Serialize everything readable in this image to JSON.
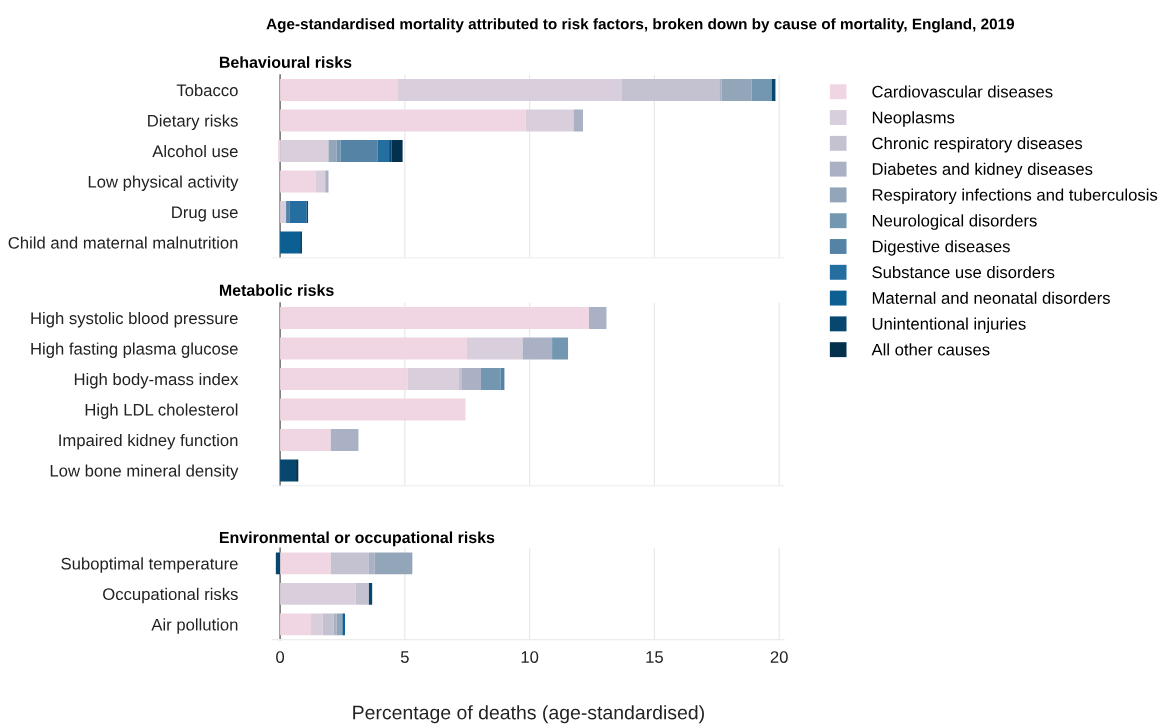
{
  "chart_data": [
    {
      "type": "bar",
      "orientation": "horizontal",
      "stacked": true,
      "title": "Age-standardised mortality attributed to risk factors, broken down by cause of mortality, England, 2019",
      "subtitle": "Behavioural risks",
      "categories": [
        "Tobacco",
        "Dietary risks",
        "Alcohol use",
        "Low physical activity",
        "Drug use",
        "Child and maternal malnutrition"
      ],
      "xlim": [
        -0.3,
        20.2
      ],
      "xticks": [
        0,
        5,
        10,
        15,
        20
      ],
      "tick_labels": "y",
      "grid": "x",
      "legend": "right",
      "series": [
        {
          "name": "Cardiovascular diseases",
          "color": "#f0d6e2",
          "values": [
            4.7,
            9.84,
            -0.08,
            1.44,
            null,
            null
          ]
        },
        {
          "name": "Neoplasms",
          "color": "#d9cedb",
          "values": [
            9.0,
            1.92,
            1.94,
            0.37,
            0.24,
            null
          ]
        },
        {
          "name": "Chronic respiratory diseases",
          "color": "#c4c2d1",
          "values": [
            3.9,
            null,
            null,
            null,
            null,
            null
          ]
        },
        {
          "name": "Diabetes and kidney diseases",
          "color": "#abb1c4",
          "values": [
            0.1,
            0.38,
            null,
            0.13,
            null,
            null
          ]
        },
        {
          "name": "Respiratory infections and tuberculosis",
          "color": "#93a5b8",
          "values": [
            1.2,
            null,
            0.33,
            null,
            null,
            null
          ]
        },
        {
          "name": "Neurological disorders",
          "color": "#7397b0",
          "values": [
            0.8,
            null,
            0.16,
            null,
            null,
            null
          ]
        },
        {
          "name": "Digestive diseases",
          "color": "#5583a5",
          "values": [
            null,
            null,
            1.47,
            null,
            0.13,
            null
          ]
        },
        {
          "name": "Substance use disorders",
          "color": "#246fa0",
          "values": [
            null,
            null,
            0.47,
            null,
            0.7,
            null
          ]
        },
        {
          "name": "Maternal and neonatal disorders",
          "color": "#0b5f93",
          "values": [
            null,
            null,
            null,
            null,
            null,
            0.8
          ]
        },
        {
          "name": "Unintentional injuries",
          "color": "#06466f",
          "values": [
            0.15,
            null,
            0.1,
            null,
            0.05,
            0.08
          ]
        },
        {
          "name": "All other causes",
          "color": "#03304d",
          "values": [
            null,
            null,
            0.44,
            null,
            null,
            null
          ]
        }
      ]
    },
    {
      "type": "bar",
      "orientation": "horizontal",
      "stacked": true,
      "subtitle": "Metabolic risks",
      "categories": [
        "High systolic blood pressure",
        "High fasting plasma glucose",
        "High body-mass index",
        "High LDL cholesterol",
        "Impaired kidney function",
        "Low bone mineral density"
      ],
      "xlim": [
        -0.3,
        20.2
      ],
      "xticks": [
        0,
        5,
        10,
        15,
        20
      ],
      "tick_labels": "y",
      "grid": "x",
      "series": [
        {
          "name": "Cardiovascular diseases",
          "color": "#f0d6e2",
          "values": [
            12.38,
            7.49,
            5.12,
            7.43,
            2.03,
            null
          ]
        },
        {
          "name": "Neoplasms",
          "color": "#d9cedb",
          "values": [
            null,
            2.23,
            2.05,
            null,
            null,
            null
          ]
        },
        {
          "name": "Chronic respiratory diseases",
          "color": "#c4c2d1",
          "values": [
            null,
            null,
            0.12,
            null,
            null,
            null
          ]
        },
        {
          "name": "Diabetes and kidney diseases",
          "color": "#abb1c4",
          "values": [
            0.7,
            1.18,
            0.76,
            null,
            1.11,
            null
          ]
        },
        {
          "name": "Neurological disorders",
          "color": "#7397b0",
          "values": [
            null,
            0.64,
            0.78,
            null,
            null,
            null
          ]
        },
        {
          "name": "Digestive diseases",
          "color": "#5583a5",
          "values": [
            null,
            null,
            0.16,
            null,
            null,
            null
          ]
        },
        {
          "name": "Unintentional injuries",
          "color": "#06466f",
          "values": [
            null,
            null,
            null,
            null,
            null,
            0.64
          ]
        },
        {
          "name": "All other causes",
          "color": "#03304d",
          "values": [
            null,
            null,
            null,
            null,
            null,
            0.09
          ]
        }
      ]
    },
    {
      "type": "bar",
      "orientation": "horizontal",
      "stacked": true,
      "subtitle": "Environmental or occupational risks",
      "xlabel": "Percentage of deaths (age-standardised)",
      "categories": [
        "Suboptimal temperature",
        "Occupational risks",
        "Air pollution"
      ],
      "xlim": [
        -0.3,
        20.2
      ],
      "xticks": [
        0,
        5,
        10,
        15,
        20
      ],
      "grid": "x",
      "series": [
        {
          "name": "Cardiovascular diseases",
          "color": "#f0d6e2",
          "values": [
            2.03,
            null,
            1.24
          ]
        },
        {
          "name": "Neoplasms",
          "color": "#d9cedb",
          "values": [
            null,
            3.03,
            0.47
          ]
        },
        {
          "name": "Chronic respiratory diseases",
          "color": "#c4c2d1",
          "values": [
            1.51,
            0.53,
            0.43
          ]
        },
        {
          "name": "Diabetes and kidney diseases",
          "color": "#abb1c4",
          "values": [
            0.25,
            null,
            0.13
          ]
        },
        {
          "name": "Respiratory infections and tuberculosis",
          "color": "#93a5b8",
          "values": [
            1.51,
            null,
            0.23
          ]
        },
        {
          "name": "Maternal and neonatal disorders",
          "color": "#0b5f93",
          "values": [
            null,
            null,
            0.1
          ]
        },
        {
          "name": "Unintentional injuries",
          "color": "#06466f",
          "values": [
            -0.17,
            0.13,
            null
          ]
        }
      ]
    }
  ]
}
